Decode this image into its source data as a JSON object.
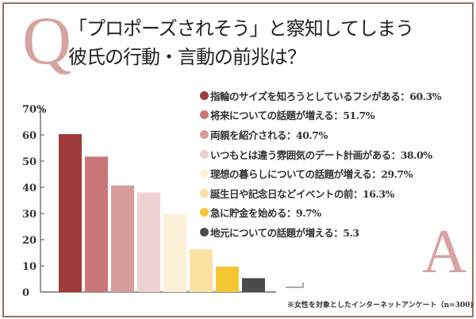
{
  "q_letter": "Q",
  "a_letter": "A",
  "title": [
    "「プロポーズされそう」と察知してしまう",
    "彼氏の行動・言動の前兆は？"
  ],
  "footnote": "※女性を対象としたインターネットアンケート（n=300)",
  "chart_data": {
    "type": "bar",
    "title": "「プロポーズされそう」と察知してしまう 彼氏の行動・言動の前兆は？",
    "categories": [
      "指輪のサイズを知ろうとしているフシがある",
      "将来についての話題が増える",
      "両親を紹介される",
      "いつもとは違う雰囲気のデート計画がある",
      "理想の暮らしについての話題が増える",
      "誕生日や記念日などイベントの前",
      "急に貯金を始める",
      "地元についての話題が増える"
    ],
    "values": [
      60.3,
      51.7,
      40.7,
      38.0,
      29.7,
      16.3,
      9.7,
      5.3
    ],
    "legend_labels": [
      "指輪のサイズを知ろうとしているフシがある：60.3%",
      "将来についての話題が増える：51.7%",
      "両親を紹介される：40.7%",
      "いつもとは違う雰囲気のデート計画がある：38.0%",
      "理想の暮らしについての話題が増える：29.7%",
      "誕生日や記念日などイベントの前：16.3%",
      "急に貯金を始める：9.7%",
      "地元についての話題が増える：5.3"
    ],
    "colors": [
      "#9e3a3a",
      "#c97676",
      "#d99c9c",
      "#edd1d3",
      "#fbf1d8",
      "#fbe1a2",
      "#f5c633",
      "#4b4b4b"
    ],
    "ylim": [
      0,
      70
    ],
    "yticks": [
      "0",
      "10",
      "20",
      "30",
      "40",
      "50",
      "60",
      "70%"
    ],
    "grid": false,
    "legend_position": "top-right"
  }
}
